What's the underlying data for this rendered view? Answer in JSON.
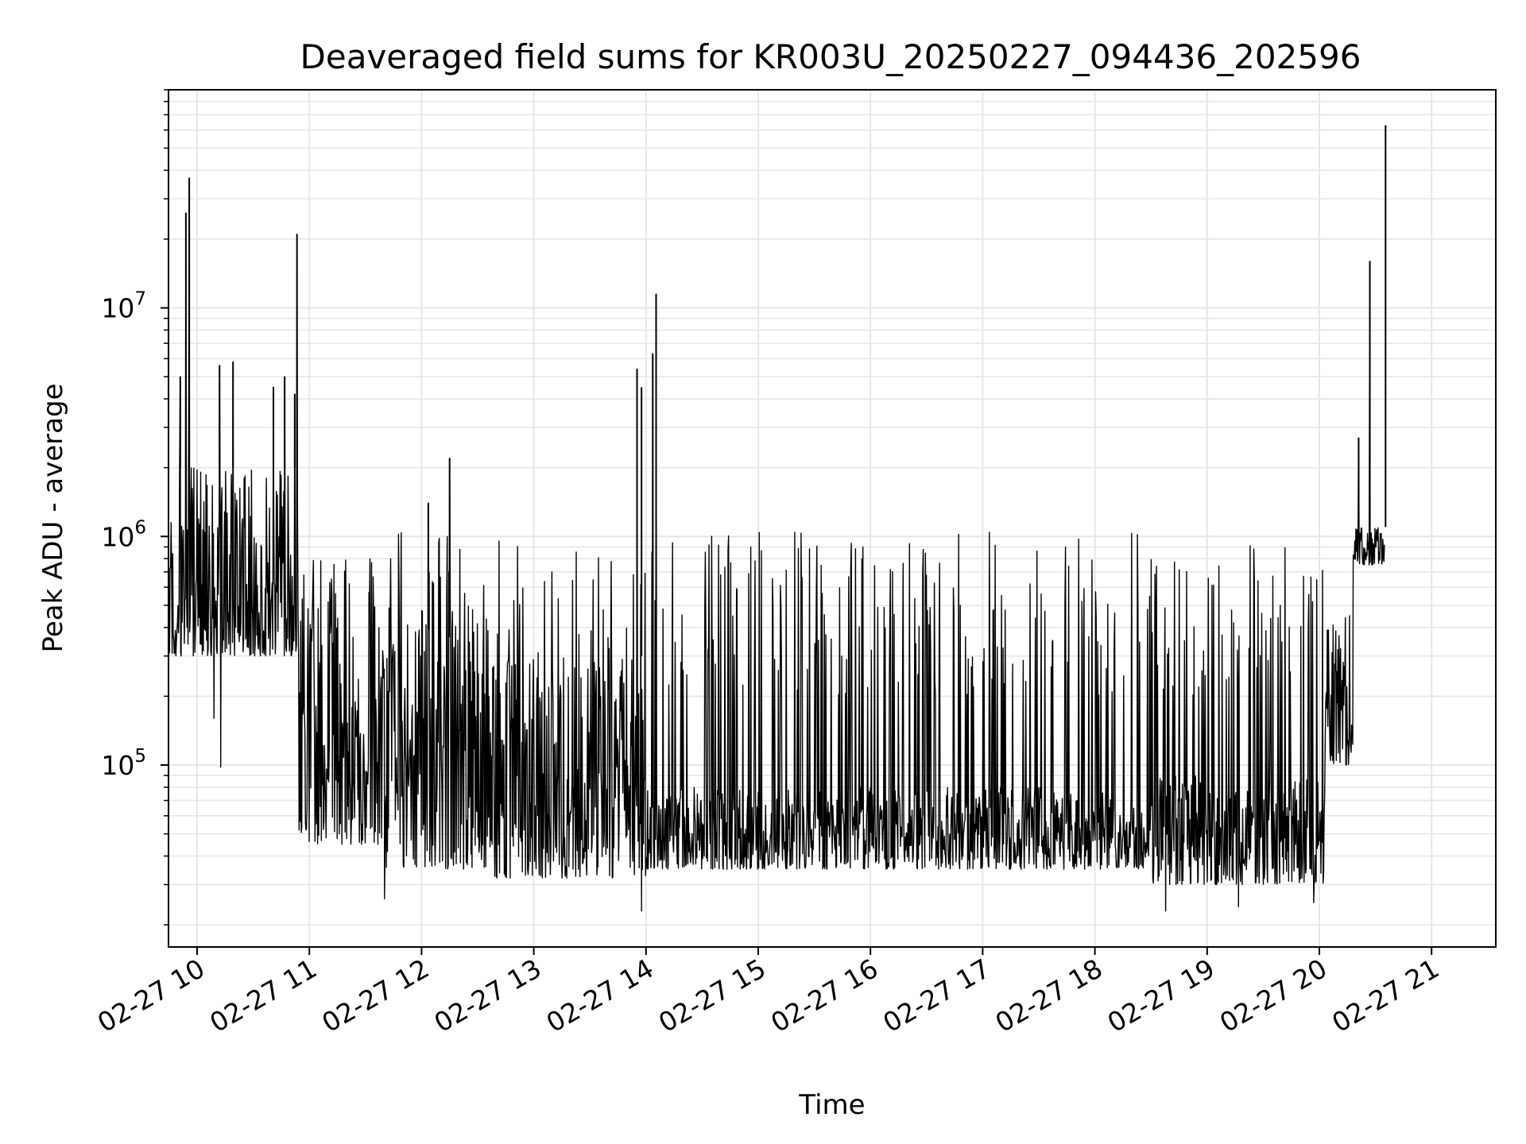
{
  "chart_data": {
    "type": "line",
    "title": "Deaveraged field sums for KR003U_20250227_094436_202596",
    "xlabel": "Time",
    "ylabel": "Peak ADU - average",
    "x_axis": {
      "type": "time",
      "range": [
        "2025-02-27 09:44",
        "2025-02-27 21:10"
      ],
      "tick_hours": [
        10,
        11,
        12,
        13,
        14,
        15,
        16,
        17,
        18,
        19,
        20,
        21
      ],
      "tick_labels": [
        "02-27 10",
        "02-27 11",
        "02-27 12",
        "02-27 13",
        "02-27 14",
        "02-27 15",
        "02-27 16",
        "02-27 17",
        "02-27 18",
        "02-27 19",
        "02-27 20",
        "02-27 21"
      ]
    },
    "y_axis": {
      "scale": "log",
      "range": [
        16000,
        90000000
      ],
      "major_ticks": [
        100000,
        1000000,
        10000000
      ],
      "major_tick_labels": [
        {
          "base": "10",
          "exp": "5"
        },
        {
          "base": "10",
          "exp": "6"
        },
        {
          "base": "10",
          "exp": "7"
        }
      ]
    },
    "grid": true,
    "line_color": "#000000",
    "grid_color": "#e6e6e6",
    "series": [
      {
        "segments": [
          {
            "start_hour": 9.74,
            "end_hour": 10.9,
            "low": 300000,
            "high": 2000000
          },
          {
            "start_hour": 10.9,
            "end_hour": 11.6,
            "low": 45000,
            "high": 800000
          },
          {
            "start_hour": 11.6,
            "end_hour": 12.6,
            "low": 35000,
            "high": 500000
          },
          {
            "start_hour": 12.6,
            "end_hour": 14.0,
            "low": 32000,
            "high": 300000
          },
          {
            "start_hour": 14.0,
            "end_hour": 18.5,
            "low": 35000,
            "high": 80000
          },
          {
            "start_hour": 18.5,
            "end_hour": 20.05,
            "low": 30000,
            "high": 90000
          },
          {
            "start_hour": 20.05,
            "end_hour": 20.3,
            "low": 100000,
            "high": 450000
          },
          {
            "start_hour": 20.3,
            "end_hour": 20.58,
            "low": 750000,
            "high": 1100000
          }
        ],
        "peaks": [
          {
            "hour": 9.85,
            "value": 5000000
          },
          {
            "hour": 9.9,
            "value": 26000000
          },
          {
            "hour": 9.93,
            "value": 37000000
          },
          {
            "hour": 10.2,
            "value": 5600000
          },
          {
            "hour": 10.32,
            "value": 5800000
          },
          {
            "hour": 10.68,
            "value": 4500000
          },
          {
            "hour": 10.78,
            "value": 5000000
          },
          {
            "hour": 10.87,
            "value": 4200000
          },
          {
            "hour": 10.89,
            "value": 21000000
          },
          {
            "hour": 12.25,
            "value": 2200000
          },
          {
            "hour": 12.06,
            "value": 1400000
          },
          {
            "hour": 13.92,
            "value": 5400000
          },
          {
            "hour": 13.96,
            "value": 4500000
          },
          {
            "hour": 14.06,
            "value": 6300000
          },
          {
            "hour": 14.09,
            "value": 11500000
          },
          {
            "hour": 20.35,
            "value": 2700000
          },
          {
            "hour": 20.45,
            "value": 16000000
          },
          {
            "hour": 20.59,
            "value": 63000000
          }
        ],
        "notable_lows": [
          {
            "hour": 10.21,
            "value": 98000
          },
          {
            "hour": 10.15,
            "value": 160000
          },
          {
            "hour": 11.67,
            "value": 26000
          },
          {
            "hour": 13.96,
            "value": 23000
          },
          {
            "hour": 18.63,
            "value": 23000
          },
          {
            "hour": 19.28,
            "value": 24000
          },
          {
            "hour": 19.95,
            "value": 25000
          }
        ]
      }
    ]
  }
}
